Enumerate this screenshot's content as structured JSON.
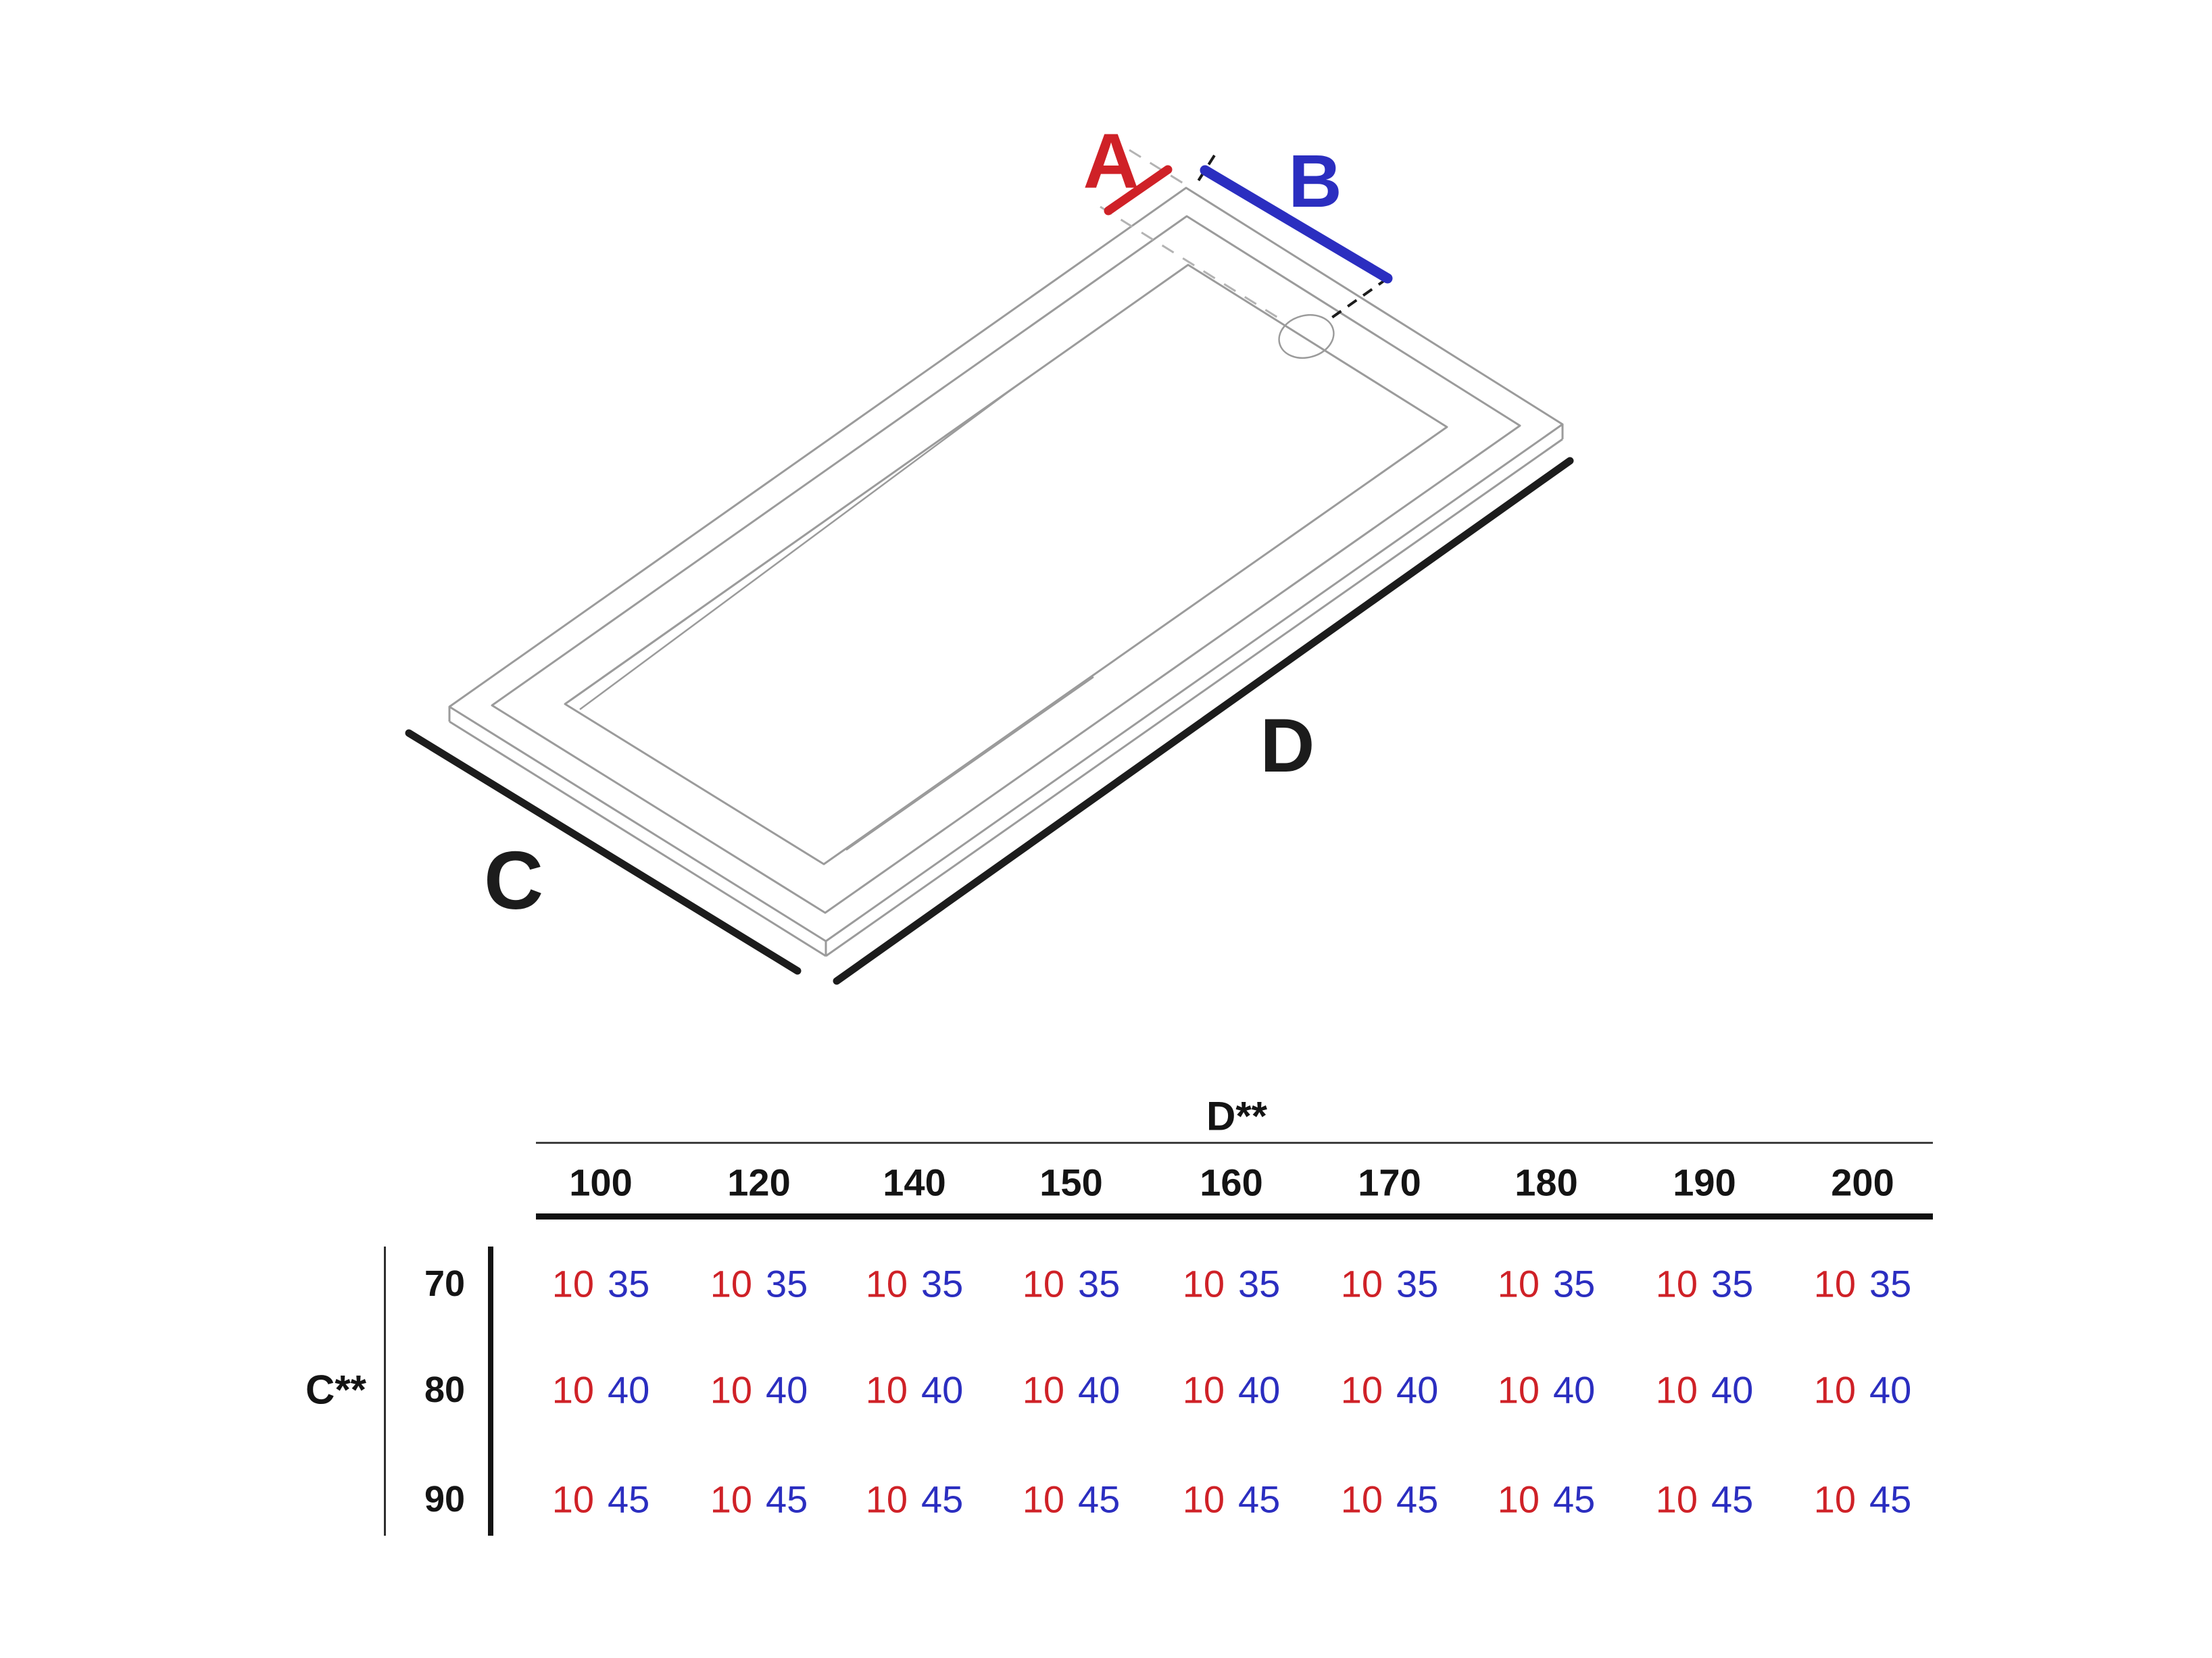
{
  "diagram": {
    "dim_labels": {
      "a": "A",
      "b": "B",
      "c": "C",
      "d": "D"
    },
    "colors": {
      "dim_a": "#cf2127",
      "dim_b": "#2b2ec0",
      "dim_cd": "#1c1c1c",
      "tray_line": "#9b9b9b",
      "dash_gray": "#b3b3b3",
      "dash_black": "#1c1c1c"
    }
  },
  "table": {
    "col_group_label": "D**",
    "row_group_label": "C**",
    "columns": [
      "100",
      "120",
      "140",
      "150",
      "160",
      "170",
      "180",
      "190",
      "200"
    ],
    "value_colors": {
      "a": "#cf2127",
      "b": "#2b2ec0"
    },
    "rows": [
      {
        "label": "70",
        "cells": [
          {
            "a": "10",
            "b": "35"
          },
          {
            "a": "10",
            "b": "35"
          },
          {
            "a": "10",
            "b": "35"
          },
          {
            "a": "10",
            "b": "35"
          },
          {
            "a": "10",
            "b": "35"
          },
          {
            "a": "10",
            "b": "35"
          },
          {
            "a": "10",
            "b": "35"
          },
          {
            "a": "10",
            "b": "35"
          },
          {
            "a": "10",
            "b": "35"
          }
        ]
      },
      {
        "label": "80",
        "cells": [
          {
            "a": "10",
            "b": "40"
          },
          {
            "a": "10",
            "b": "40"
          },
          {
            "a": "10",
            "b": "40"
          },
          {
            "a": "10",
            "b": "40"
          },
          {
            "a": "10",
            "b": "40"
          },
          {
            "a": "10",
            "b": "40"
          },
          {
            "a": "10",
            "b": "40"
          },
          {
            "a": "10",
            "b": "40"
          },
          {
            "a": "10",
            "b": "40"
          }
        ]
      },
      {
        "label": "90",
        "cells": [
          {
            "a": "10",
            "b": "45"
          },
          {
            "a": "10",
            "b": "45"
          },
          {
            "a": "10",
            "b": "45"
          },
          {
            "a": "10",
            "b": "45"
          },
          {
            "a": "10",
            "b": "45"
          },
          {
            "a": "10",
            "b": "45"
          },
          {
            "a": "10",
            "b": "45"
          },
          {
            "a": "10",
            "b": "45"
          },
          {
            "a": "10",
            "b": "45"
          }
        ]
      }
    ]
  }
}
